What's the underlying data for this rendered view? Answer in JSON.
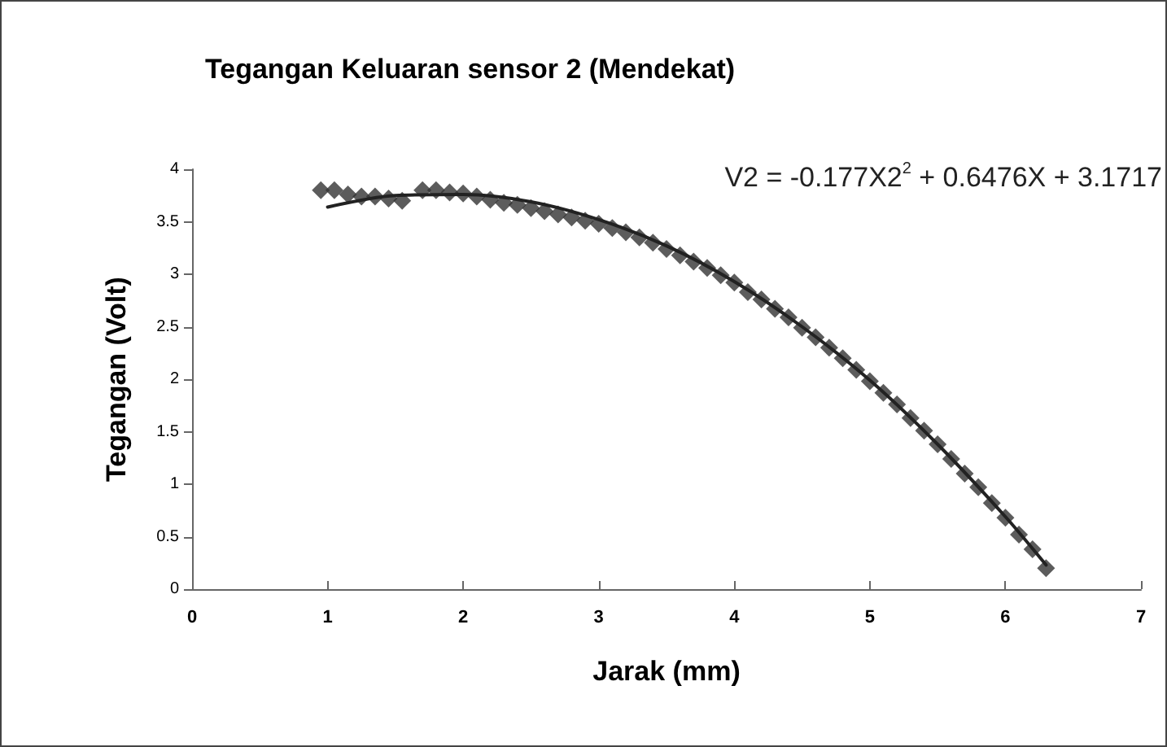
{
  "chart_data": {
    "type": "scatter",
    "title": "Tegangan Keluaran sensor 2 (Mendekat)",
    "xlabel": "Jarak (mm)",
    "ylabel": "Tegangan (Volt)",
    "annotations": [
      "V2 = -0.177X2$^{2}$ + 0.6476X + 3.1717"
    ],
    "series": [
      {
        "color": "#333333",
        "marker": "diamond",
        "x": [
          0.95,
          1.05,
          1.15,
          1.25,
          1.35,
          1.45,
          1.55,
          1.7,
          1.8,
          1.9,
          2.0,
          2.1,
          2.2,
          2.3,
          2.4,
          2.5,
          2.6,
          2.7,
          2.8,
          2.9,
          3.0,
          3.1,
          3.2,
          3.3,
          3.4,
          3.5,
          3.6,
          3.7,
          3.8,
          3.9,
          4.0,
          4.1,
          4.2,
          4.3,
          4.4,
          4.5,
          4.6,
          4.7,
          4.8,
          4.9,
          5.0,
          5.1,
          5.2,
          5.3,
          5.4,
          5.5,
          5.6,
          5.7,
          5.8,
          5.9,
          6.0,
          6.1,
          6.2,
          6.3
        ],
        "values": [
          3.8,
          3.8,
          3.76,
          3.74,
          3.74,
          3.72,
          3.7,
          3.8,
          3.8,
          3.78,
          3.77,
          3.74,
          3.71,
          3.68,
          3.66,
          3.63,
          3.6,
          3.57,
          3.54,
          3.51,
          3.48,
          3.44,
          3.4,
          3.35,
          3.3,
          3.24,
          3.18,
          3.12,
          3.06,
          2.99,
          2.92,
          2.83,
          2.76,
          2.67,
          2.59,
          2.49,
          2.4,
          2.3,
          2.2,
          2.09,
          1.98,
          1.87,
          1.76,
          1.63,
          1.51,
          1.38,
          1.24,
          1.1,
          0.97,
          0.82,
          0.68,
          0.52,
          0.38,
          0.2
        ]
      },
      {
        "type": "line",
        "color": "#222222",
        "marker": "none",
        "line_style": "solid",
        "x": [
          1,
          1.5,
          2,
          2.5,
          3,
          3.5,
          4,
          4.5,
          5,
          5.5,
          6,
          6.3
        ],
        "values": [
          3.64,
          3.75,
          3.76,
          3.69,
          3.52,
          3.27,
          2.93,
          2.5,
          1.99,
          1.38,
          0.69,
          0.23
        ]
      }
    ],
    "xlim": [
      0,
      7
    ],
    "xticks": [
      0,
      1,
      2,
      3,
      4,
      5,
      6,
      7
    ],
    "ylim": [
      0,
      4
    ],
    "yticks": [
      0,
      0.5,
      1,
      1.5,
      2,
      2.5,
      3,
      3.5,
      4
    ],
    "grid": false
  }
}
